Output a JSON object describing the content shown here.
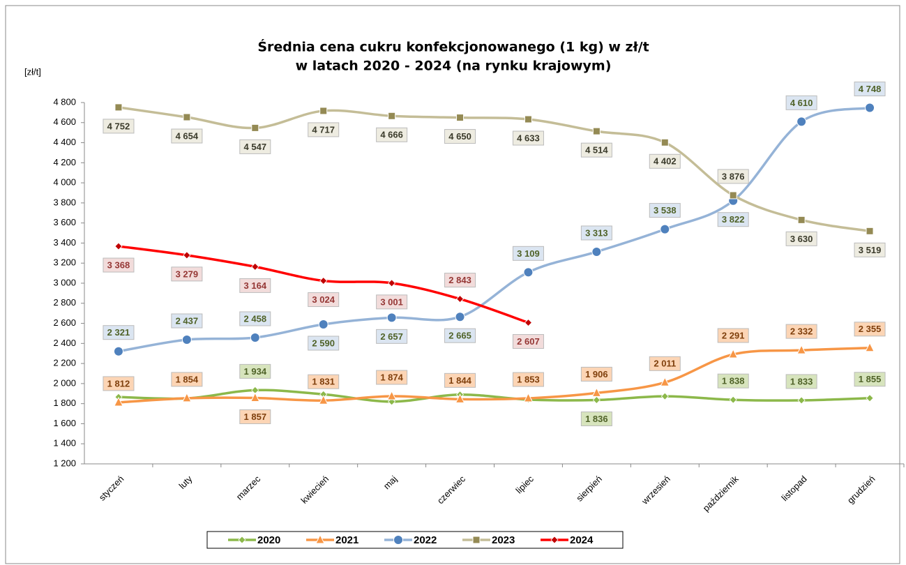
{
  "chart_data": {
    "type": "line",
    "title": [
      "Średnia cena cukru konfekcjonowanego (1 kg) w zł/t",
      "w latach 2020 - 2024 (na rynku krajowym)"
    ],
    "y_label": "[zł/t]",
    "categories": [
      "styczeń",
      "luty",
      "marzec",
      "kwiecień",
      "maj",
      "czerwiec",
      "lipiec",
      "sierpień",
      "wrzesień",
      "październik",
      "listopad",
      "grudzień"
    ],
    "ylim": [
      1200,
      4800
    ],
    "yticks": [
      {
        "value": 1200,
        "label": "1 200"
      },
      {
        "value": 1400,
        "label": "1 400"
      },
      {
        "value": 1600,
        "label": "1 600"
      },
      {
        "value": 1800,
        "label": "1 800"
      },
      {
        "value": 2000,
        "label": "2 000"
      },
      {
        "value": 2200,
        "label": "2 200"
      },
      {
        "value": 2400,
        "label": "2 400"
      },
      {
        "value": 2600,
        "label": "2 600"
      },
      {
        "value": 2800,
        "label": "2 800"
      },
      {
        "value": 3000,
        "label": "3 000"
      },
      {
        "value": 3200,
        "label": "3 200"
      },
      {
        "value": 3400,
        "label": "3 400"
      },
      {
        "value": 3600,
        "label": "3 600"
      },
      {
        "value": 3800,
        "label": "3 800"
      },
      {
        "value": 4000,
        "label": "4 000"
      },
      {
        "value": 4200,
        "label": "4 200"
      },
      {
        "value": 4400,
        "label": "4 400"
      },
      {
        "value": 4600,
        "label": "4 600"
      },
      {
        "value": 4800,
        "label": "4 800"
      }
    ],
    "grid": false,
    "legend": "bottom",
    "series": [
      {
        "name": "2020",
        "color": "#8cb84a",
        "marker": "diamond",
        "label_color": "#4f6228",
        "label_fill": "#d7e4bd",
        "values": [
          1866,
          1852,
          1934,
          1893,
          1820,
          1890,
          1840,
          1836,
          1873,
          1838,
          1833,
          1855
        ],
        "value_labels": [
          null,
          null,
          "1 934",
          null,
          null,
          null,
          null,
          "1 836",
          null,
          "1 838",
          "1 833",
          "1 855"
        ]
      },
      {
        "name": "2021",
        "color": "#f79646",
        "marker": "triangle",
        "label_color": "#7f3f0c",
        "label_fill": "#fcd5b5",
        "values": [
          1812,
          1854,
          1857,
          1831,
          1874,
          1844,
          1853,
          1906,
          2011,
          2291,
          2332,
          2355
        ],
        "value_labels": [
          "1 812",
          "1 854",
          "1 857",
          "1 831",
          "1 874",
          "1 844",
          "1 853",
          "1 906",
          "2 011",
          "2 291",
          "2 332",
          "2 355"
        ]
      },
      {
        "name": "2022",
        "color": "#95b3d7",
        "marker_color": "#4f81bd",
        "marker": "circle",
        "label_color": "#4f6228",
        "label_fill": "#dbe5f1",
        "values": [
          2321,
          2437,
          2458,
          2590,
          2657,
          2665,
          3109,
          3313,
          3538,
          3822,
          4610,
          4748
        ],
        "value_labels": [
          "2 321",
          "2 437",
          "2 458",
          "2 590",
          "2 657",
          "2 665",
          "3 109",
          "3 313",
          "3 538",
          "3 822",
          "4 610",
          "4 748"
        ]
      },
      {
        "name": "2023",
        "color": "#c4bd97",
        "marker_color": "#948a54",
        "marker": "square",
        "label_color": "#3b3b2b",
        "label_fill": "#eeece1",
        "values": [
          4752,
          4654,
          4547,
          4717,
          4666,
          4650,
          4633,
          4514,
          4402,
          3876,
          3630,
          3519
        ],
        "value_labels": [
          "4 752",
          "4 654",
          "4 547",
          "4 717",
          "4 666",
          "4 650",
          "4 633",
          "4 514",
          "4 402",
          "3 876",
          "3 630",
          "3 519"
        ]
      },
      {
        "name": "2024",
        "color": "#ff0000",
        "marker_color": "#c00000",
        "marker": "diamond",
        "label_color": "#953735",
        "label_fill": "#f2dcdb",
        "values": [
          3368,
          3279,
          3164,
          3024,
          3001,
          2843,
          2607,
          null,
          null,
          null,
          null,
          null
        ],
        "value_labels": [
          "3 368",
          "3 279",
          "3 164",
          "3 024",
          "3 001",
          "2 843",
          "2 607",
          null,
          null,
          null,
          null,
          null
        ]
      }
    ]
  }
}
